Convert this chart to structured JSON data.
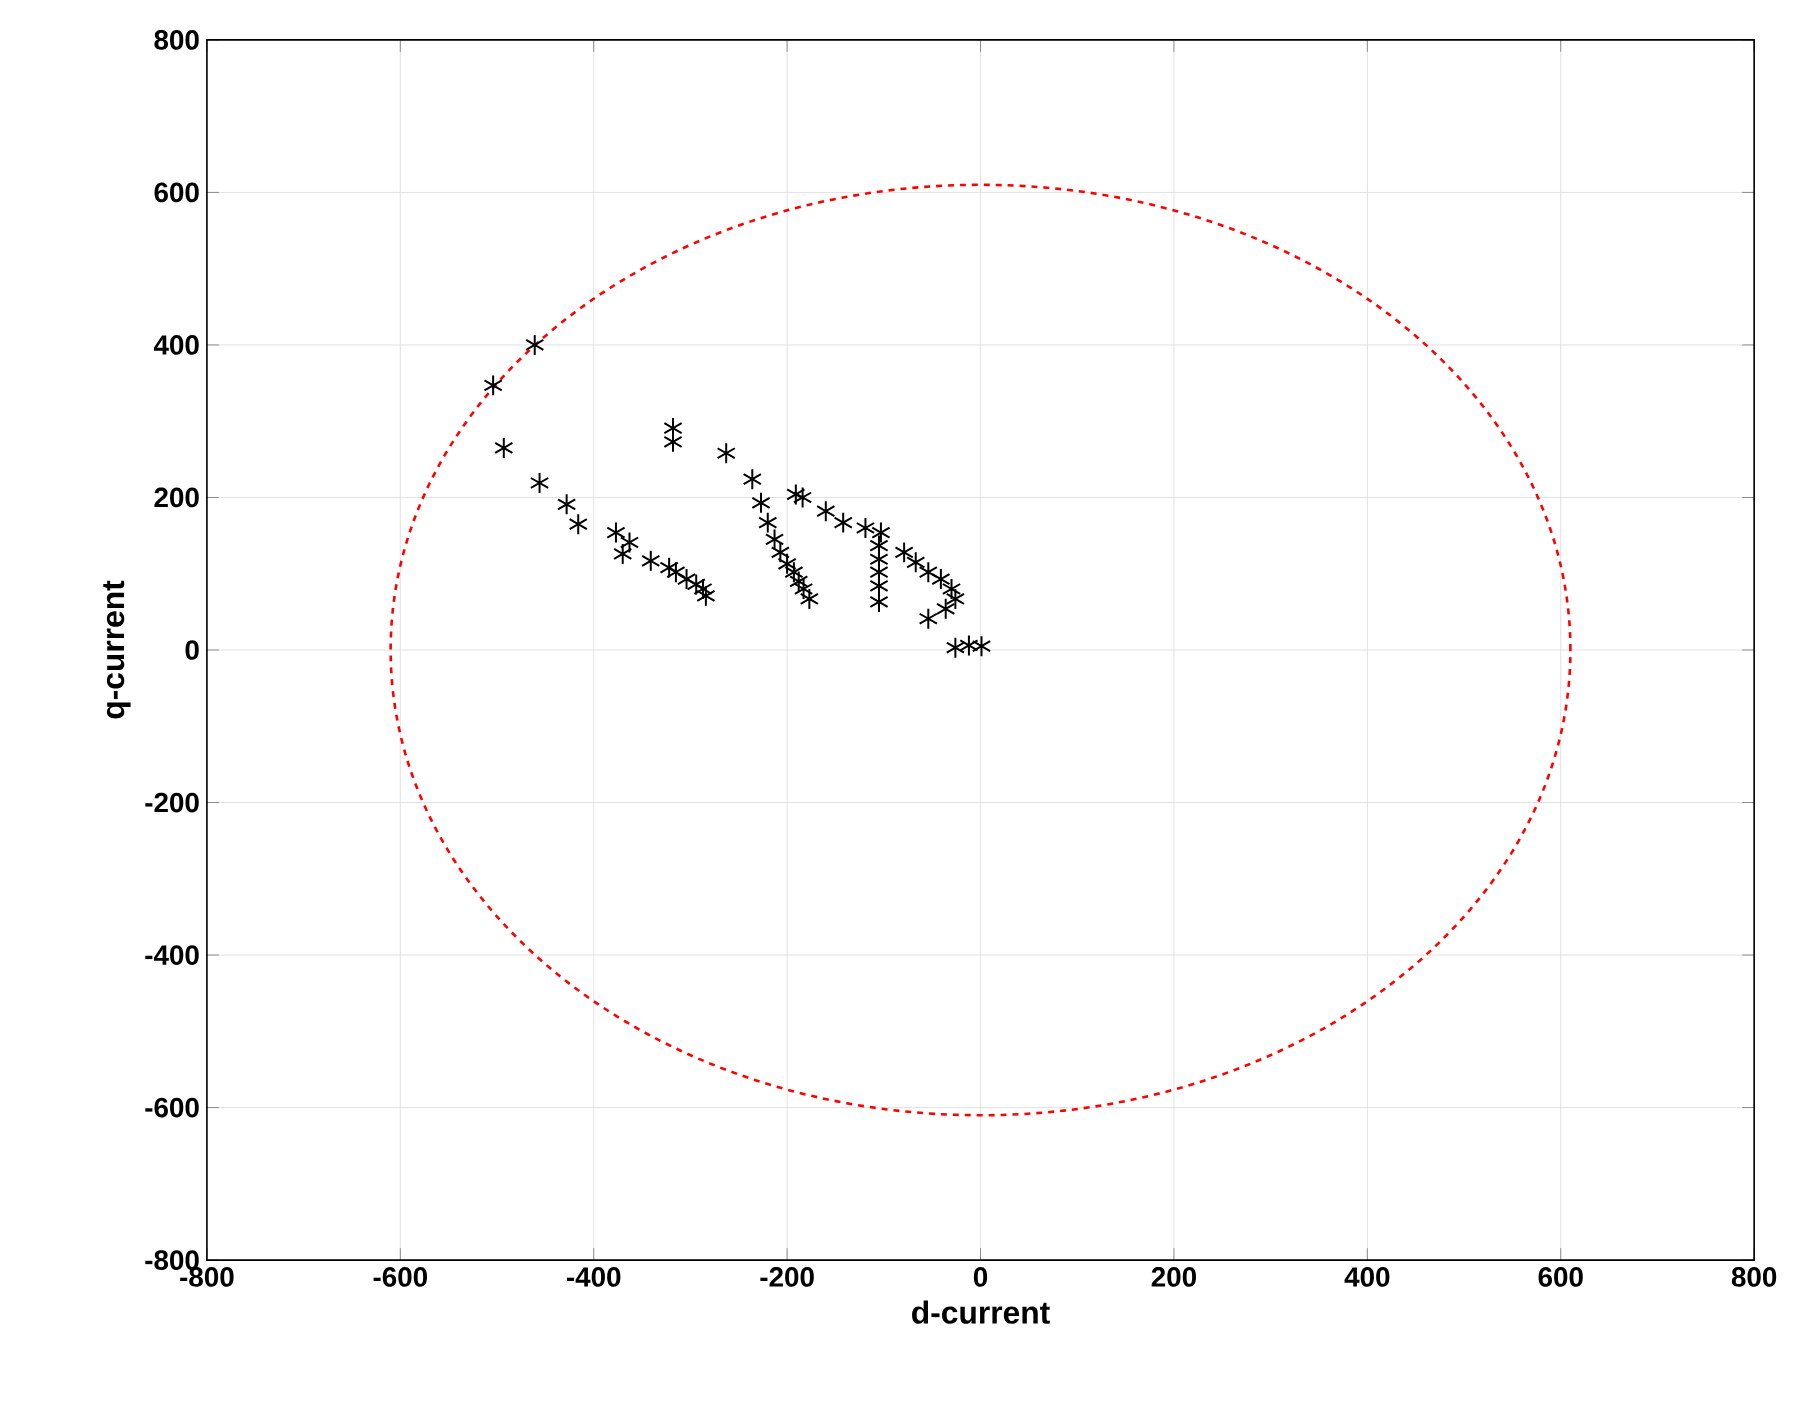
{
  "chart_data": {
    "type": "scatter",
    "xlabel": "d-current",
    "ylabel": "q-current",
    "xlim": [
      -800,
      800
    ],
    "ylim": [
      -800,
      800
    ],
    "xticks": [
      -800,
      -600,
      -400,
      -200,
      0,
      200,
      400,
      600,
      800
    ],
    "yticks": [
      -800,
      -600,
      -400,
      -200,
      0,
      200,
      400,
      600,
      800
    ],
    "grid": true,
    "series": [
      {
        "color": "#000000",
        "x": [
          -461,
          -504,
          -493,
          -456,
          -428,
          -416,
          -377,
          -363,
          -370,
          -341,
          -322,
          -315,
          -304,
          -294,
          -287,
          -284,
          -318,
          -318,
          -263,
          -236,
          -227,
          -220,
          -213,
          -207,
          -200,
          -193,
          -188,
          -183,
          -177,
          -191,
          -184,
          -160,
          -142,
          -119,
          -103,
          -105,
          -105,
          -105,
          -105,
          -105,
          -79,
          -67,
          -54,
          -41,
          -30,
          -26,
          -36,
          -54,
          -26,
          -12,
          1
        ],
        "values": [
          400,
          347,
          265,
          219,
          191,
          165,
          154,
          141,
          126,
          117,
          108,
          102,
          93,
          86,
          80,
          71,
          291,
          273,
          258,
          224,
          193,
          167,
          145,
          128,
          113,
          102,
          90,
          80,
          67,
          204,
          200,
          182,
          167,
          160,
          154,
          137,
          119,
          102,
          84,
          63,
          128,
          115,
          102,
          93,
          80,
          67,
          54,
          41,
          3,
          6,
          5
        ]
      }
    ]
  }
}
